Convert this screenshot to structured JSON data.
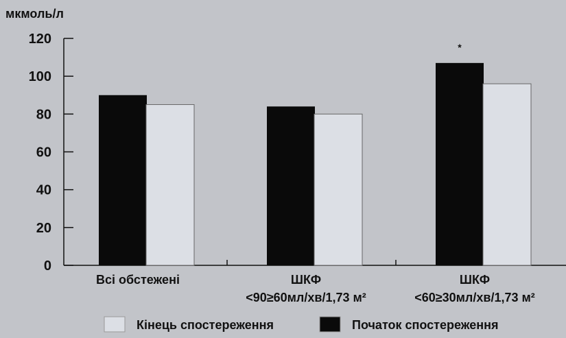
{
  "chart_data": {
    "type": "bar",
    "ylabel": "мкмоль/л",
    "ylim": [
      0,
      120
    ],
    "yticks": [
      0,
      20,
      40,
      60,
      80,
      100,
      120
    ],
    "grid": false,
    "categories": [
      {
        "lines": [
          "Всі обстежені"
        ]
      },
      {
        "lines": [
          "ШКФ",
          "<90≥60мл/хв/1,73 м²"
        ]
      },
      {
        "lines": [
          "ШКФ",
          "<60≥30мл/хв/1,73 м²"
        ]
      }
    ],
    "series": [
      {
        "name": "Початок спостереження",
        "color": "#0a0a0a",
        "values": [
          90,
          84,
          107
        ]
      },
      {
        "name": "Кінець спостереження",
        "color": "#dcdfe5",
        "values": [
          85,
          80,
          96
        ]
      }
    ],
    "annotations": [
      {
        "category_index": 2,
        "series_index": 0,
        "text": "*"
      }
    ],
    "legend": {
      "placement": "bottom",
      "order": [
        1,
        0
      ]
    }
  }
}
